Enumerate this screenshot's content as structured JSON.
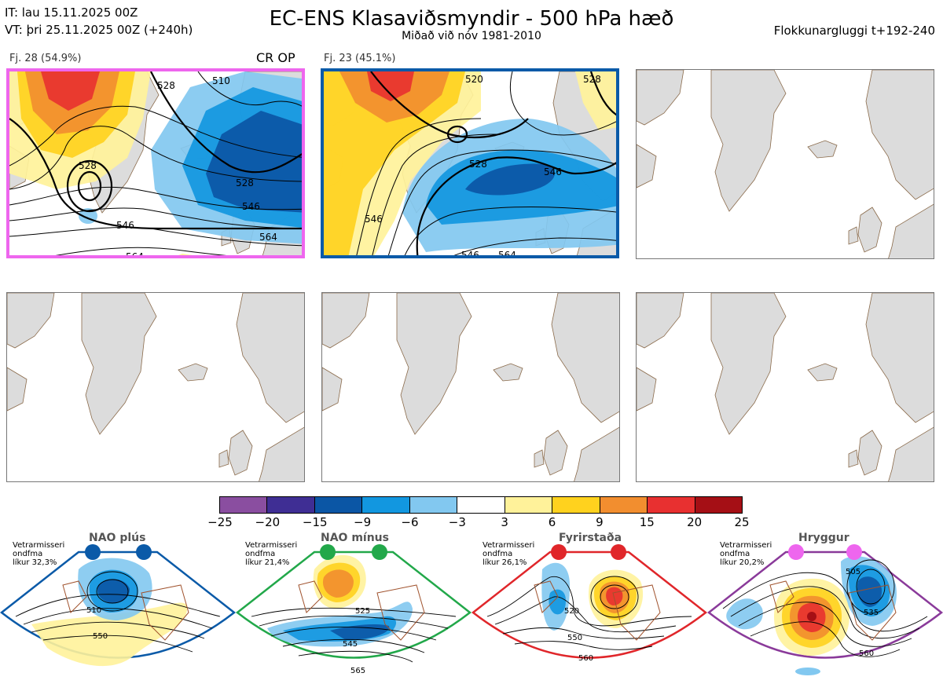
{
  "header": {
    "it_line": "IT: lau 15.11.2025 00Z",
    "vt_line": "VT: þri 25.11.2025 00Z  (+240h)",
    "title": "EC-ENS Klasaviðsmyndir - 500 hPa hæð",
    "subtitle": "Miðað við nóv 1981-2010",
    "window": "Flokkunargluggi t+192-240"
  },
  "clusters": [
    {
      "label": "Fj. 28 (54.9%)",
      "tag": "CR OP",
      "border_color": "#ee66ee",
      "contour_labels": [
        "528",
        "510",
        "528",
        "528",
        "546",
        "546",
        "564",
        "564"
      ]
    },
    {
      "label": "Fj. 23 (45.1%)",
      "tag": "",
      "border_color": "#0a5aa8",
      "contour_labels": [
        "520",
        "528",
        "528",
        "546",
        "546",
        "546",
        "564"
      ]
    }
  ],
  "colorbar": {
    "ticks": [
      "−25",
      "−20",
      "−15",
      "−9",
      "−6",
      "−3",
      "3",
      "6",
      "9",
      "15",
      "20",
      "25"
    ],
    "colors": [
      "#8a4ea0",
      "#3f2e94",
      "#0b56a5",
      "#1297e0",
      "#82c8f0",
      "#ffffff",
      "#fff29a",
      "#ffd21e",
      "#f28e2f",
      "#e83030",
      "#a50f15"
    ]
  },
  "regimes": [
    {
      "name": "NAO plús",
      "info1": "Vetrarmisseri",
      "info2": "ondfma",
      "info3": "líkur 32,3%",
      "color": "#0a5aa8",
      "contour_labels": [
        "510",
        "550"
      ]
    },
    {
      "name": "NAO mínus",
      "info1": "Vetrarmisseri",
      "info2": "ondfma",
      "info3": "líkur 21,4%",
      "color": "#22a84a",
      "contour_labels": [
        "525",
        "545",
        "565"
      ]
    },
    {
      "name": "Fyrirstaða",
      "info1": "Vetrarmisseri",
      "info2": "ondfma",
      "info3": "líkur 26,1%",
      "color": "#e0262a",
      "contour_labels": [
        "520",
        "550",
        "560"
      ]
    },
    {
      "name": "Hryggur",
      "info1": "Vetrarmisseri",
      "info2": "ondfma",
      "info3": "líkur 20,2%",
      "color": "#ee66ee",
      "contour_labels": [
        "505",
        "535",
        "560"
      ]
    }
  ]
}
